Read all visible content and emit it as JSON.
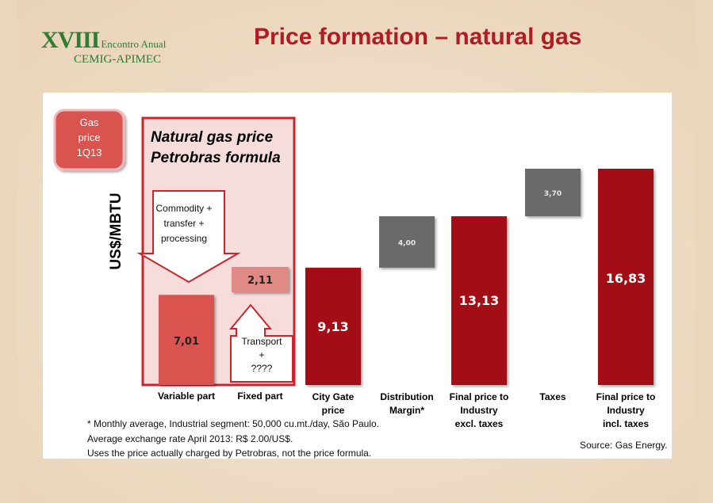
{
  "header": {
    "logo_line1": "XVIII",
    "logo_line1_small": "Encontro Anual",
    "logo_line2": "CEMIG-APIMEC",
    "title": "Price formation – natural gas"
  },
  "badge": {
    "line1": "Gas",
    "line2": "price",
    "line3": "1Q13"
  },
  "petrobras_box": {
    "line1": "Natural gas price",
    "line2": "Petrobras formula",
    "commodity_line1": "Commodity +",
    "commodity_line2": "transfer +",
    "commodity_line3": "processing",
    "transport_line1": "Transport",
    "transport_line2": "+",
    "transport_line3": "????"
  },
  "chart_data": {
    "type": "bar",
    "subtype": "waterfall",
    "ylabel": "US$/MBTU",
    "categories": [
      [
        "Variable part"
      ],
      [
        "Fixed part"
      ],
      [
        "City Gate",
        "price"
      ],
      [
        "Distribution",
        "Margin*"
      ],
      [
        "Final price to",
        "Industry",
        "excl. taxes"
      ],
      [
        "Taxes"
      ],
      [
        "Final price to",
        "Industry",
        "incl. taxes"
      ]
    ],
    "bars": [
      {
        "label": "7,01",
        "value": 7.01,
        "base": 0,
        "kind": "component"
      },
      {
        "label": "2,11",
        "value": 2.11,
        "base": 7.01,
        "kind": "component"
      },
      {
        "label": "9,13",
        "value": 9.13,
        "base": 0,
        "kind": "total"
      },
      {
        "label": "4,00",
        "value": 4.0,
        "base": 9.13,
        "kind": "increment"
      },
      {
        "label": "13,13",
        "value": 13.13,
        "base": 0,
        "kind": "total"
      },
      {
        "label": "3,70",
        "value": 3.7,
        "base": 13.13,
        "kind": "increment"
      },
      {
        "label": "16,83",
        "value": 16.83,
        "base": 0,
        "kind": "total"
      }
    ],
    "ylim": [
      0,
      16.83
    ],
    "grid": false,
    "colors": {
      "total": "#a30f17",
      "component": "#d9534f",
      "fixed": "#e08a85",
      "increment": "#6b6b6b",
      "box_border": "#c9252d",
      "box_fill": "#f6d9d9"
    }
  },
  "footnotes": {
    "line1": "*  Monthly average, Industrial segment:  50,000 cu.mt./day, São Paulo.",
    "line2": "Average exchange rate April 2013: R$ 2.00/US$.",
    "line3": "Uses the price actually charged by Petrobras, not the price formula.",
    "source": "Source: Gas Energy."
  }
}
